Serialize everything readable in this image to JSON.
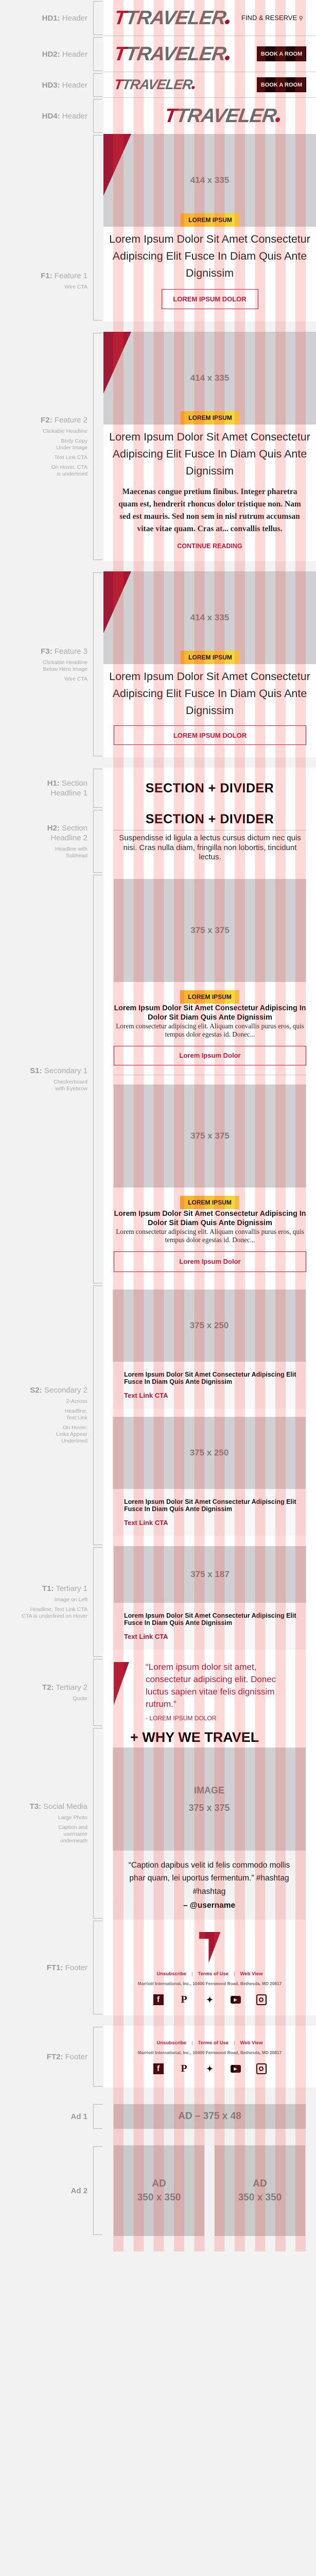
{
  "labels": {
    "hd1": {
      "code": "HD1:",
      "name": "Header"
    },
    "hd2": {
      "code": "HD2:",
      "name": "Header"
    },
    "hd3": {
      "code": "HD3:",
      "name": "Header"
    },
    "hd4": {
      "code": "HD4:",
      "name": "Header"
    },
    "f1": {
      "code": "F1:",
      "name": "Feature 1",
      "notes": [
        "Wire CTA"
      ]
    },
    "f2": {
      "code": "F2:",
      "name": "Feature 2",
      "notes": [
        "Clickable Headline",
        "Body Copy",
        "Under Image",
        "Text Link CTA",
        "On Hover, CTA",
        "is underlined"
      ]
    },
    "f3": {
      "code": "F3:",
      "name": "Feature 3",
      "notes": [
        "Clickable Headline",
        "Below Hero Image",
        "Wire CTA"
      ]
    },
    "h1": {
      "code": "H1:",
      "name": "Section",
      "name2": "Headline 1"
    },
    "h2": {
      "code": "H2:",
      "name": "Section",
      "name2": "Headline 2",
      "notes": [
        "Headline with",
        "Subhead"
      ]
    },
    "s1": {
      "code": "S1:",
      "name": "Secondary 1",
      "notes": [
        "Checkerboard",
        "with Eyebrow"
      ]
    },
    "s2": {
      "code": "S2:",
      "name": "Secondary 2",
      "notes": [
        "2-Across",
        "Headline,",
        "Text Link",
        "On Hover:",
        "Links Appear",
        "Underlined"
      ]
    },
    "t1": {
      "code": "T1:",
      "name": "Tertiary 1",
      "notes": [
        "Image on Left",
        "Headline, Text Link CTA",
        "CTA is underlined on Hover"
      ]
    },
    "t2": {
      "code": "T2:",
      "name": "Tertiary 2",
      "notes": [
        "Quote"
      ]
    },
    "t3": {
      "code": "T3:",
      "name": "Social Media",
      "notes": [
        "Large Photo",
        "Caption and",
        "username",
        "underneath"
      ]
    },
    "ft1": {
      "code": "FT1:",
      "name": "Footer"
    },
    "ft2": {
      "code": "FT2:",
      "name": "Footer"
    },
    "ad1": {
      "name": "Ad 1"
    },
    "ad2": {
      "name": "Ad 2"
    }
  },
  "brand": {
    "logo": "TRAVELER",
    "accent": "#a8142e",
    "eyebrow_gradient": [
      "#f8b133",
      "#f5dc3c"
    ],
    "grid_overlay": "#ff3c3c"
  },
  "header": {
    "find_reserve": "FIND & RESERVE",
    "search_icon": "search-icon",
    "book_label": "BOOK A ROOM"
  },
  "features": {
    "image_label": "414 x 335",
    "eyebrow": "LOREM IPSUM",
    "headline": "Lorem Ipsum Dolor Sit Amet Consectetur Adipiscing Elit Fusce In Diam Quis Ante Dignissim",
    "cta": "LOREM IPSUM DOLOR",
    "body": "Maecenas congue pretium finibus. Integer pharetra quam est, hendrerit rhoncus dolor tristique non. Nam sed est mauris. Sed non sem in nisl rutrum accumsan vitae vitae quam. Cras at... convallis tellus.",
    "continue": "CONTINUE READING"
  },
  "section_headlines": {
    "h1": "SECTION + DIVIDER",
    "h2": "SECTION + DIVIDER",
    "subhead": "Suspendisse id ligula a lectus cursus dictum nec quis nisi. Cras nulla diam, fringilla non lobortis, tincidunt lectus."
  },
  "secondary1": {
    "image_label": "375 x 375",
    "eyebrow": "LOREM IPSUM",
    "headline": "Lorem Ipsum Dolor Sit Amet Consectetur Adipiscing In Dolor Sit Diam Quis Ante Dignissim",
    "body": "Lorem consectetur adipiscing elit. Aliquam convallis purus eros, quis tempus dolor egestas id. Donec...",
    "cta": "Lorem Ipsum Dolor"
  },
  "secondary2": {
    "image_label": "375 x 250",
    "headline": "Lorem Ipsum Dolor Sit Amet Consectetur Adipiscing Elit Fusce In Diam Quis Ante Dignissim",
    "cta": "Text Link CTA"
  },
  "tertiary1": {
    "image_label": "375 x 187",
    "headline": "Lorem Ipsum Dolor Sit Amet Consectetur Adipiscing Elit Fusce In Diam Quis Ante Dignissim",
    "cta": "Text Link CTA"
  },
  "tertiary2": {
    "quote": "“Lorem ipsum dolor sit amet, consectetur adipiscing elit. Donec luctus sapien vitae felis dignissim rutrum.”",
    "attribution": "- LOREM IPSUM DOLOR"
  },
  "social": {
    "heading": "+ WHY WE TRAVEL",
    "image_title": "IMAGE",
    "image_label": "375 x 375",
    "caption": "“Caption dapibus velit id felis commodo mollis phar quam,  lei uportus fermentum.” #hashtag #hashtag",
    "username": "– @username"
  },
  "footer": {
    "links": [
      "Unsubscribe",
      "Terms of Use",
      "Web View"
    ],
    "separator": "|",
    "address": "Marriott International, Inc., 10400 Fernwood Road, Bethesda, MD 20817",
    "icons": [
      "facebook-icon",
      "pinterest-icon",
      "twitter-icon",
      "youtube-icon",
      "instagram-icon"
    ]
  },
  "ads": {
    "ad1": "AD – 375 x 48",
    "ad2_title": "AD",
    "ad2_size": "350 x 350"
  }
}
